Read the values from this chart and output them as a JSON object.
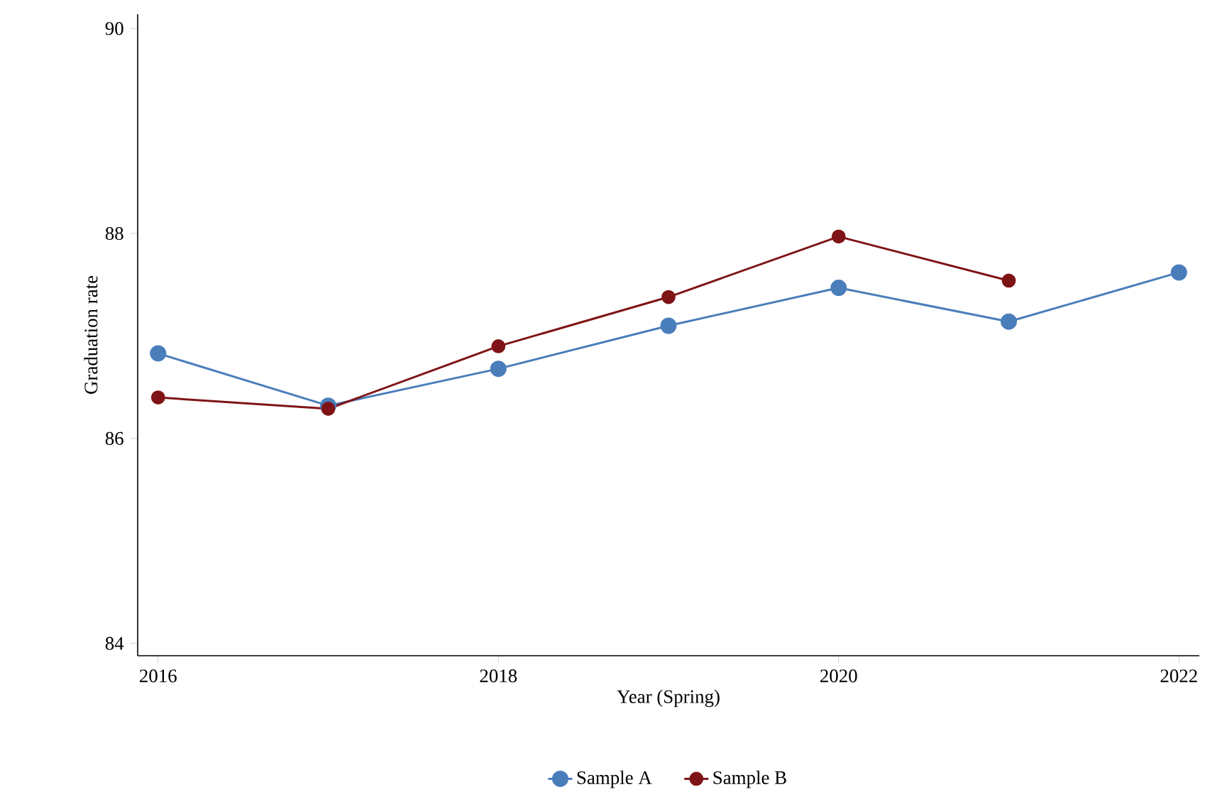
{
  "chart_data": {
    "type": "line",
    "xlabel": "Year (Spring)",
    "ylabel": "Graduation rate",
    "x": [
      2016,
      2017,
      2018,
      2019,
      2020,
      2021,
      2022
    ],
    "series": [
      {
        "name": "Sample A",
        "color": "#4a7ebb",
        "values": [
          86.83,
          86.32,
          86.68,
          87.1,
          87.47,
          87.14,
          87.62
        ]
      },
      {
        "name": "Sample B",
        "color": "#7f1416",
        "values": [
          86.4,
          86.29,
          86.9,
          87.38,
          87.97,
          87.54,
          null
        ]
      }
    ],
    "xlim": [
      2015.88,
      2022.12
    ],
    "ylim": [
      83.88,
      90.14
    ],
    "xticks": [
      2016,
      2018,
      2020,
      2022
    ],
    "yticks": [
      84,
      86,
      88,
      90
    ],
    "grid": false,
    "legend": "bottom",
    "marker": "circle",
    "line_style": "solid"
  }
}
